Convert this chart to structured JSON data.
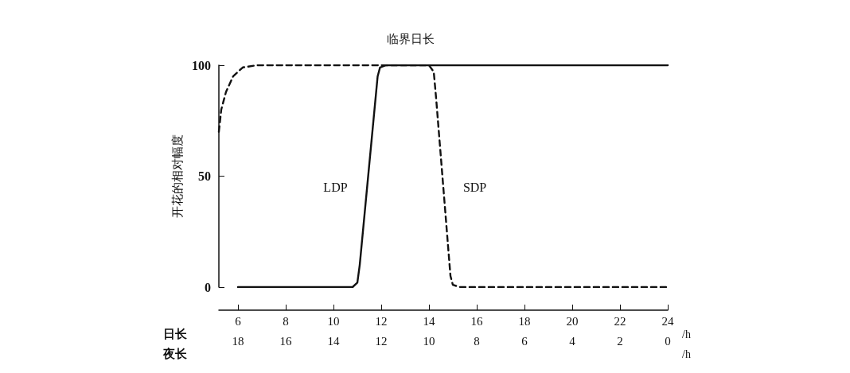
{
  "chart_data": {
    "type": "line",
    "title": "临界日长",
    "ylabel": "开花的相对幅度",
    "xlabel": "日长",
    "x2label": "夜长",
    "annotations": [
      "/h",
      "/h"
    ],
    "xlim": [
      5.2,
      24
    ],
    "xticks": [
      6,
      8,
      10,
      12,
      14,
      16,
      18,
      20,
      22,
      24
    ],
    "x2lim": [
      18.8,
      0
    ],
    "x2ticks": [
      18,
      16,
      14,
      12,
      10,
      8,
      6,
      4,
      2,
      0
    ],
    "ylim": [
      0,
      100
    ],
    "yticks": [
      0,
      50,
      100
    ],
    "grid": false,
    "legend": false,
    "marker": "none",
    "series": [
      {
        "name": "LDP",
        "color": "#111111",
        "line_style": "solid",
        "x": [
          6,
          10.8,
          11.0,
          11.1,
          11.85,
          11.95,
          12.2,
          24
        ],
        "values": [
          0,
          0,
          2,
          10,
          95,
          99,
          100,
          100
        ]
      },
      {
        "name": "SDP",
        "color": "#111111",
        "line_style": "dashed",
        "x": [
          5.2,
          5.3,
          5.5,
          5.8,
          6.2,
          6.8,
          14,
          14.2,
          14.3,
          14.9,
          15.0,
          15.3,
          24
        ],
        "values": [
          70,
          80,
          88,
          95,
          99,
          100,
          100,
          97,
          85,
          5,
          1,
          0,
          0
        ]
      }
    ]
  }
}
